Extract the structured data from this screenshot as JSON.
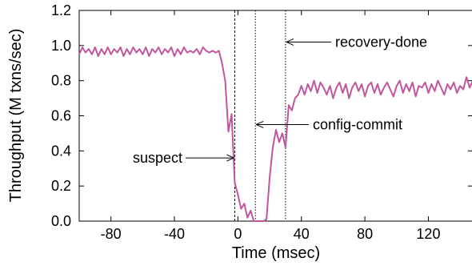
{
  "chart_data": {
    "type": "line",
    "xlabel": "Time (msec)",
    "ylabel": "Throughput (M txns/sec)",
    "xlim": [
      -100,
      148
    ],
    "ylim": [
      0,
      1.2
    ],
    "x_ticks": [
      -80,
      -40,
      0,
      40,
      80,
      120
    ],
    "x_tick_labels": [
      "-80",
      "-40",
      "0",
      "40",
      "80",
      "120"
    ],
    "y_ticks": [
      0.0,
      0.2,
      0.4,
      0.6,
      0.8,
      1.0,
      1.2
    ],
    "y_tick_labels": [
      "0.0",
      "0.2",
      "0.4",
      "0.6",
      "0.8",
      "1.0",
      "1.2"
    ],
    "grid": false,
    "series": [
      {
        "color": "#c0569f",
        "x": [
          -100,
          -98,
          -96,
          -94,
          -92,
          -90,
          -88,
          -86,
          -84,
          -82,
          -80,
          -78,
          -76,
          -74,
          -72,
          -70,
          -68,
          -66,
          -64,
          -62,
          -60,
          -58,
          -56,
          -54,
          -52,
          -50,
          -48,
          -46,
          -44,
          -42,
          -40,
          -38,
          -36,
          -34,
          -32,
          -30,
          -28,
          -26,
          -24,
          -22,
          -20,
          -18,
          -16,
          -14,
          -12,
          -10,
          -8,
          -6,
          -4,
          -2,
          0,
          2,
          4,
          6,
          8,
          10,
          12,
          14,
          16,
          18,
          20,
          22,
          24,
          26,
          28,
          30,
          32,
          34,
          36,
          38,
          40,
          42,
          44,
          46,
          48,
          50,
          52,
          54,
          56,
          58,
          60,
          62,
          64,
          66,
          68,
          70,
          72,
          74,
          76,
          78,
          80,
          82,
          84,
          86,
          88,
          90,
          92,
          94,
          96,
          98,
          100,
          102,
          104,
          106,
          108,
          110,
          112,
          114,
          116,
          118,
          120,
          122,
          124,
          126,
          128,
          130,
          132,
          134,
          136,
          138,
          140,
          142,
          144,
          146,
          148
        ],
        "y": [
          0.95,
          0.99,
          0.96,
          0.98,
          0.95,
          0.99,
          0.94,
          0.98,
          0.95,
          0.99,
          0.95,
          0.98,
          0.96,
          0.99,
          0.94,
          0.98,
          0.95,
          0.99,
          0.96,
          0.98,
          0.95,
          0.99,
          0.94,
          0.98,
          0.96,
          0.99,
          0.95,
          0.98,
          0.96,
          0.99,
          0.94,
          0.98,
          0.95,
          0.99,
          0.96,
          0.97,
          0.96,
          0.98,
          0.95,
          0.99,
          0.97,
          0.96,
          0.97,
          0.96,
          0.97,
          0.9,
          0.8,
          0.51,
          0.61,
          0.22,
          0.15,
          0.07,
          0.1,
          0.02,
          0.06,
          0.0,
          0.0,
          0.0,
          0.0,
          0.01,
          0.25,
          0.42,
          0.52,
          0.45,
          0.5,
          0.42,
          0.66,
          0.63,
          0.7,
          0.72,
          0.77,
          0.72,
          0.78,
          0.74,
          0.8,
          0.73,
          0.79,
          0.76,
          0.72,
          0.77,
          0.7,
          0.76,
          0.79,
          0.73,
          0.78,
          0.7,
          0.76,
          0.79,
          0.74,
          0.78,
          0.71,
          0.77,
          0.79,
          0.73,
          0.78,
          0.72,
          0.76,
          0.79,
          0.75,
          0.71,
          0.77,
          0.8,
          0.73,
          0.78,
          0.74,
          0.79,
          0.71,
          0.77,
          0.76,
          0.79,
          0.73,
          0.78,
          0.74,
          0.8,
          0.76,
          0.72,
          0.78,
          0.75,
          0.79,
          0.73,
          0.77,
          0.75,
          0.82,
          0.76,
          0.8
        ]
      }
    ],
    "markers": [
      {
        "x": -2,
        "label": "suspect",
        "style": "dashed"
      },
      {
        "x": 11,
        "label": "config-commit",
        "style": "dotted"
      },
      {
        "x": 30,
        "label": "recovery-done",
        "style": "dotted"
      }
    ]
  }
}
